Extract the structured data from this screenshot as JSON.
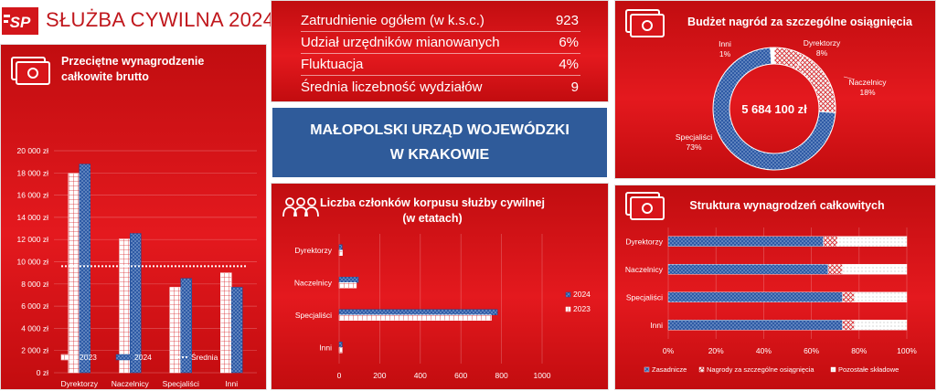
{
  "header": {
    "title": "SŁUŻBA CYWILNA 2024",
    "logo_icon": "fsp-logo-icon"
  },
  "colors": {
    "red": "#e11a1f",
    "blue": "#2e5aa5",
    "white": "#ffffff"
  },
  "stats": {
    "rows": [
      {
        "label": "Zatrudnienie ogółem (w k.s.c.)",
        "value": "923"
      },
      {
        "label": "Udział urzędników mianowanych",
        "value": "6%"
      },
      {
        "label": "Fluktuacja",
        "value": "4%"
      },
      {
        "label": "Średnia liczebność wydziałów",
        "value": "9"
      }
    ]
  },
  "office": {
    "name": "MAŁOPOLSKI URZĄD WOJEWÓDZKI W KRAKOWIE"
  },
  "salary": {
    "title": "Przeciętne wynagrodzenie całkowite brutto",
    "icon": "money-icon",
    "chart_data": {
      "type": "bar",
      "categories": [
        "Dyrektorzy",
        "Naczelnicy",
        "Specjaliści",
        "Inni"
      ],
      "series": [
        {
          "name": "2023",
          "values": [
            17950,
            12050,
            7700,
            9000
          ]
        },
        {
          "name": "2024",
          "values": [
            18800,
            12550,
            8500,
            7700
          ]
        }
      ],
      "average": {
        "name": "Średnia",
        "value": 9600
      },
      "ylim": [
        0,
        20000
      ],
      "yticks": [
        0,
        2000,
        4000,
        6000,
        8000,
        10000,
        12000,
        14000,
        16000,
        18000,
        20000
      ],
      "ytick_labels": [
        "0 zł",
        "2 000 zł",
        "4 000 zł",
        "6 000 zł",
        "8 000 zł",
        "10 000 zł",
        "12 000 zł",
        "14 000 zł",
        "16 000 zł",
        "18 000 zł",
        "20 000 zł"
      ],
      "legend": "bottom"
    }
  },
  "corps": {
    "title": "Liczba członków korpusu służby cywilnej (w etatach)",
    "icon": "people-icon",
    "chart_data": {
      "type": "bar",
      "orientation": "horizontal",
      "categories": [
        "Dyrektorzy",
        "Naczelnicy",
        "Specjaliści",
        "Inni"
      ],
      "series": [
        {
          "name": "2024",
          "values": [
            15,
            95,
            780,
            15
          ]
        },
        {
          "name": "2023",
          "values": [
            16,
            85,
            750,
            15
          ]
        }
      ],
      "xlim": [
        0,
        1000
      ],
      "xticks": [
        0,
        200,
        400,
        600,
        800,
        1000
      ],
      "legend": "right"
    }
  },
  "budget": {
    "title": "Budżet nagród za szczególne osiągnięcia",
    "icon": "money-icon",
    "total": "5 684 100 zł",
    "chart_data": {
      "type": "pie",
      "donut": true,
      "slices": [
        {
          "name": "Dyrektorzy",
          "value": 8,
          "label": "8%"
        },
        {
          "name": "Naczelnicy",
          "value": 18,
          "label": "18%"
        },
        {
          "name": "Specjaliści",
          "value": 73,
          "label": "73%"
        },
        {
          "name": "Inni",
          "value": 1,
          "label": "1%"
        }
      ]
    }
  },
  "structure": {
    "title": "Struktura wynagrodzeń całkowitych",
    "icon": "money-icon",
    "chart_data": {
      "type": "bar",
      "orientation": "horizontal",
      "stacked": true,
      "percent": true,
      "categories": [
        "Dyrektorzy",
        "Naczelnicy",
        "Specjaliści",
        "Inni"
      ],
      "series": [
        {
          "name": "Zasadnicze",
          "values": [
            65,
            67,
            73,
            73
          ]
        },
        {
          "name": "Nagrody za szczególne osiągnięcia",
          "values": [
            6,
            6,
            5,
            5
          ]
        },
        {
          "name": "Pozostałe składowe",
          "values": [
            29,
            27,
            22,
            22
          ]
        }
      ],
      "xlim": [
        0,
        100
      ],
      "xticks": [
        0,
        20,
        40,
        60,
        80,
        100
      ],
      "xtick_labels": [
        "0%",
        "20%",
        "40%",
        "60%",
        "80%",
        "100%"
      ],
      "legend": "bottom"
    }
  }
}
